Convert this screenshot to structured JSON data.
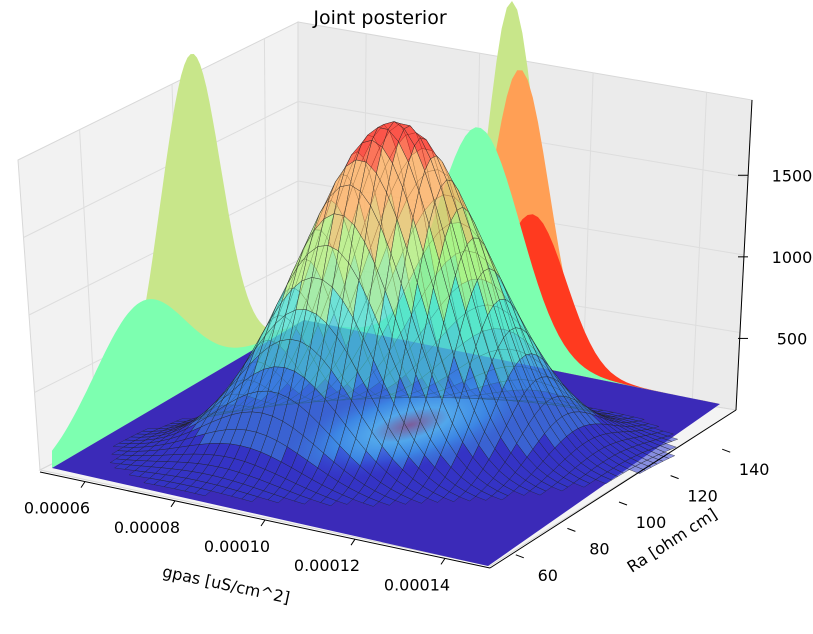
{
  "chart_data": {
    "type": "surface3d",
    "title": "Joint posterior",
    "xlabel": "gpas [uS/cm^2]",
    "ylabel": "Ra [ohm cm]",
    "zlabel": "",
    "x_ticks": [
      "0.00006",
      "0.00008",
      "0.00010",
      "0.00012",
      "0.00014"
    ],
    "y_ticks": [
      "60",
      "80",
      "100",
      "120",
      "140"
    ],
    "z_ticks": [
      "500",
      "1000",
      "1500"
    ],
    "xlim": [
      5e-05,
      0.00015
    ],
    "ylim": [
      50,
      150
    ],
    "zlim": [
      0,
      1900
    ],
    "colormap": "rainbow",
    "peak": {
      "gpas": 0.0001,
      "Ra": 100,
      "density": 1750
    },
    "wireframe_color": "#222222",
    "projections": [
      {
        "plane": "back-x",
        "color": "#c8e68a",
        "peak": 1750
      },
      {
        "plane": "back-x",
        "color": "#7dffb0",
        "peak": 600
      },
      {
        "plane": "side-y",
        "color": "#c8e68a",
        "peak": 1900
      },
      {
        "plane": "side-y",
        "color": "#ff9f55",
        "peak": 1550
      },
      {
        "plane": "side-y",
        "color": "#ff3a1f",
        "peak": 800
      },
      {
        "plane": "side-y",
        "color": "#7dffb0",
        "peak": 1200
      }
    ],
    "floor_color": "#3b2ab8",
    "grid": true
  }
}
